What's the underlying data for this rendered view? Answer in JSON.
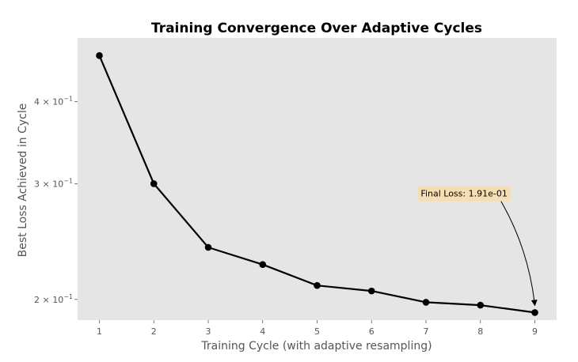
{
  "chart_data": {
    "type": "line",
    "title": "Training Convergence Over Adaptive Cycles",
    "xlabel": "Training Cycle (with adaptive resampling)",
    "ylabel": "Best Loss Achieved in Cycle",
    "yscale": "log",
    "x": [
      1,
      2,
      3,
      4,
      5,
      6,
      7,
      8,
      9
    ],
    "values": [
      0.47,
      0.3,
      0.24,
      0.226,
      0.21,
      0.206,
      0.198,
      0.196,
      0.191
    ],
    "xticks": [
      "1",
      "2",
      "3",
      "4",
      "5",
      "6",
      "7",
      "8",
      "9"
    ],
    "yticks": [
      {
        "value": 0.2,
        "base": "2 × 10",
        "exp": "−1"
      },
      {
        "value": 0.3,
        "base": "3 × 10",
        "exp": "−1"
      },
      {
        "value": 0.4,
        "base": "4 × 10",
        "exp": "−1"
      }
    ],
    "xlim": [
      0.6,
      9.4
    ],
    "ylim": [
      0.186,
      0.5
    ],
    "grid": false,
    "annotation": {
      "text": "Final Loss: 1.91e-01",
      "target_x": 9,
      "target_y": 0.191,
      "text_x": 7.7,
      "text_y": 0.29
    },
    "colors": {
      "plot_background": "#e5e5e5",
      "line": "#000000",
      "annotation_box": "#f5deb3"
    }
  }
}
